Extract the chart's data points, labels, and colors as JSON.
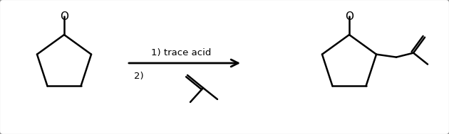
{
  "bg_color": "#ffffff",
  "border_color": "#888888",
  "line_color": "#000000",
  "line_width": 1.8,
  "arrow_color": "#000000",
  "text_color": "#000000",
  "label1": "1) trace acid",
  "label2": "2)",
  "fig_width": 6.3,
  "fig_height": 1.89,
  "dpi": 100
}
